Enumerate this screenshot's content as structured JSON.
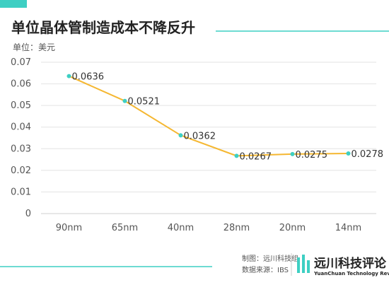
{
  "header": {
    "title": "单位晶体管制造成本不降反升",
    "accent_color": "#3ecfc3"
  },
  "chart_data": {
    "type": "line",
    "title": "单位晶体管制造成本不降反升",
    "unit_label": "单位：美元",
    "categories": [
      "90nm",
      "65nm",
      "40nm",
      "28nm",
      "20nm",
      "14nm"
    ],
    "series": [
      {
        "values": [
          0.0636,
          0.0521,
          0.0362,
          0.0267,
          0.0275,
          0.0278
        ],
        "labels": [
          "0.0636",
          "0.0521",
          "0.0362",
          "0.0267",
          "0.0275",
          "0.0278"
        ],
        "line_color": "#f5b731",
        "marker_color": "#3ecfc3"
      }
    ],
    "yticks": [
      "0",
      "0.01",
      "0.02",
      "0.03",
      "0.04",
      "0.05",
      "0.06",
      "0.07"
    ],
    "ylim": [
      0,
      0.07
    ],
    "grid": true,
    "grid_color": "#e3e3e3"
  },
  "footer": {
    "credit": "制图：远川科技组",
    "source": "数据来源：IBS",
    "brand_name": "远川科技评论",
    "brand_subtitle": "YuanChuan Technology Review",
    "brand_color": "#3ecfc3"
  }
}
